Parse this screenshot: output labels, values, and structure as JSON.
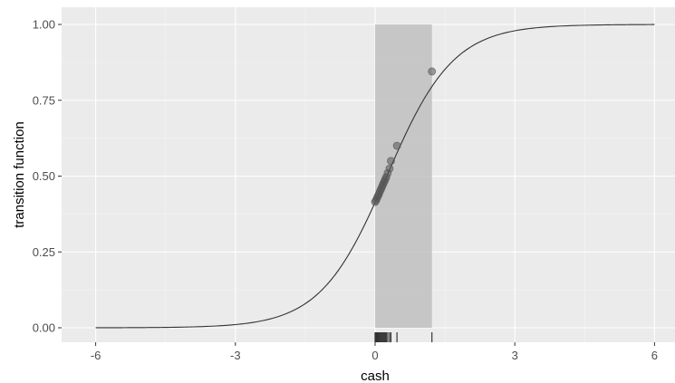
{
  "chart_data": {
    "type": "line",
    "xlabel": "cash",
    "ylabel": "transition function",
    "xlim": [
      -6.8,
      7.0
    ],
    "ylim": [
      -0.05,
      1.05
    ],
    "x_ticks": [
      -6,
      -3,
      0,
      3,
      6
    ],
    "x_tick_labels": [
      "-6",
      "-3",
      "0",
      "3",
      "6"
    ],
    "y_ticks": [
      0.0,
      0.25,
      0.5,
      0.75,
      1.0
    ],
    "y_tick_labels": [
      "0.00",
      "0.25",
      "0.50",
      "0.75",
      "1.00"
    ],
    "grid": true,
    "curve": {
      "function": "logistic",
      "gamma": 1.4,
      "center": 0.25,
      "x_range": [
        -6,
        6
      ]
    },
    "shaded_region": {
      "x": [
        0.0,
        1.22
      ],
      "y": [
        0.0,
        1.0
      ]
    },
    "points": [
      {
        "x": 0.0,
        "y": 0.415
      },
      {
        "x": 0.02,
        "y": 0.42
      },
      {
        "x": 0.04,
        "y": 0.427
      },
      {
        "x": 0.06,
        "y": 0.434
      },
      {
        "x": 0.08,
        "y": 0.44
      },
      {
        "x": 0.1,
        "y": 0.448
      },
      {
        "x": 0.12,
        "y": 0.455
      },
      {
        "x": 0.14,
        "y": 0.462
      },
      {
        "x": 0.16,
        "y": 0.469
      },
      {
        "x": 0.18,
        "y": 0.476
      },
      {
        "x": 0.2,
        "y": 0.483
      },
      {
        "x": 0.22,
        "y": 0.49
      },
      {
        "x": 0.24,
        "y": 0.497
      },
      {
        "x": 0.27,
        "y": 0.51
      },
      {
        "x": 0.31,
        "y": 0.525
      },
      {
        "x": 0.34,
        "y": 0.55
      },
      {
        "x": 0.47,
        "y": 0.6
      },
      {
        "x": 1.22,
        "y": 0.845
      }
    ],
    "rug": [
      0.0,
      0.02,
      0.04,
      0.06,
      0.08,
      0.1,
      0.12,
      0.14,
      0.16,
      0.18,
      0.2,
      0.22,
      0.24,
      0.27,
      0.31,
      0.34,
      0.47,
      1.22
    ],
    "colors": {
      "panel_background": "#ebebeb",
      "grid_major": "#ffffff",
      "grid_minor": "#f5f5f5",
      "curve": "#333333",
      "shade": "#bdbdbd",
      "points": "#555555",
      "rug": "#333333",
      "tick_text": "#4d4d4d"
    }
  }
}
